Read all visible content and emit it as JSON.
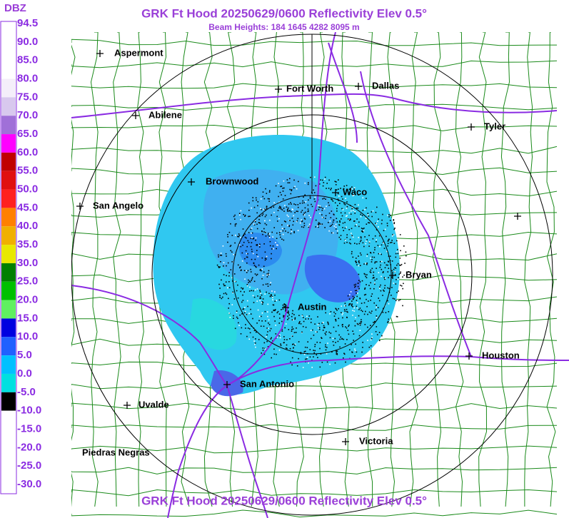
{
  "header": {
    "title": "GRK Ft Hood 20250629/0600 Reflectivity Elev 0.5°",
    "subtitle": "Beam Heights: 184 1645 4282 8095 m"
  },
  "footer": {
    "title": "GRK Ft Hood 20250629/0600 Reflectivity Elev 0.5°"
  },
  "legend": {
    "unit": "DBZ",
    "labels": [
      "94.5",
      "90.0",
      "85.0",
      "80.0",
      "75.0",
      "70.0",
      "65.0",
      "60.0",
      "55.0",
      "50.0",
      "45.0",
      "40.0",
      "35.0",
      "30.0",
      "25.0",
      "20.0",
      "15.0",
      "10.0",
      "5.0",
      "0.0",
      "-5.0",
      "-10.0",
      "-15.0",
      "-20.0",
      "-25.0",
      "-30.0"
    ],
    "colors": [
      "#ffffff",
      "#ffffff",
      "#ffffff",
      "#f4eefa",
      "#d8c8ee",
      "#a070d8",
      "#ff00ff",
      "#c00000",
      "#e01010",
      "#ff2020",
      "#ff8000",
      "#f0b000",
      "#e8e800",
      "#008000",
      "#00c000",
      "#60f060",
      "#0000e0",
      "#2060ff",
      "#00c0ff",
      "#00e0e0",
      "#000000",
      "#ffffff",
      "#ffffff",
      "#ffffff",
      "#ffffff",
      "#ffffff"
    ]
  },
  "map": {
    "cities": [
      "Aspermont",
      "Fort Worth",
      "Dallas",
      "Abilene",
      "Tyler",
      "Brownwood",
      "Waco",
      "San Angelo",
      "Bryan",
      "Austin",
      "Houston",
      "San Antonio",
      "Uvalde",
      "Victoria",
      "Piedras Negras"
    ]
  }
}
